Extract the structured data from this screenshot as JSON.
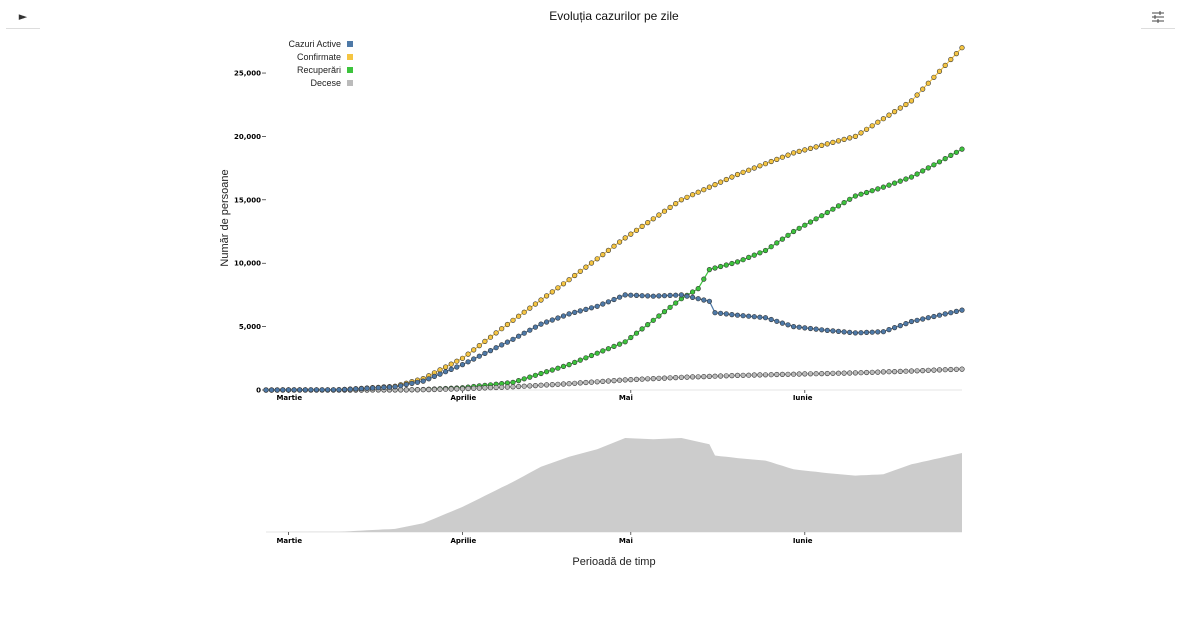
{
  "controls": {
    "play_icon": "►"
  },
  "chart_data": {
    "type": "scatter",
    "title": "Evoluția cazurilor pe zile",
    "xlabel": "Perioadă de timp",
    "ylabel": "Număr de persoane",
    "ylim": [
      0,
      28000
    ],
    "yticks": [
      0,
      5000,
      10000,
      15000,
      20000,
      25000
    ],
    "ytick_labels": [
      "0",
      "5,000",
      "10,000",
      "15,000",
      "20,000",
      "25,000"
    ],
    "x_range": [
      "2020-02-26",
      "2020-06-29"
    ],
    "xticks": [
      {
        "date": "2020-03-01",
        "label": "Martie"
      },
      {
        "date": "2020-04-01",
        "label": "Aprilie"
      },
      {
        "date": "2020-05-01",
        "label": "Mai"
      },
      {
        "date": "2020-06-01",
        "label": "Iunie"
      }
    ],
    "legend_position": "top-left",
    "series": [
      {
        "name": "Cazuri Active",
        "color": "#4e79a7",
        "points": [
          [
            "2020-02-26",
            0
          ],
          [
            "2020-03-10",
            20
          ],
          [
            "2020-03-20",
            250
          ],
          [
            "2020-03-25",
            700
          ],
          [
            "2020-04-01",
            2000
          ],
          [
            "2020-04-10",
            4000
          ],
          [
            "2020-04-15",
            5200
          ],
          [
            "2020-04-20",
            6000
          ],
          [
            "2020-04-25",
            6600
          ],
          [
            "2020-04-30",
            7500
          ],
          [
            "2020-05-05",
            7400
          ],
          [
            "2020-05-10",
            7500
          ],
          [
            "2020-05-15",
            7000
          ],
          [
            "2020-05-16",
            6100
          ],
          [
            "2020-05-20",
            5900
          ],
          [
            "2020-05-25",
            5700
          ],
          [
            "2020-05-30",
            5000
          ],
          [
            "2020-06-05",
            4700
          ],
          [
            "2020-06-10",
            4500
          ],
          [
            "2020-06-15",
            4600
          ],
          [
            "2020-06-20",
            5400
          ],
          [
            "2020-06-25",
            5900
          ],
          [
            "2020-06-29",
            6300
          ]
        ]
      },
      {
        "name": "Confirmate",
        "color": "#f5c542",
        "points": [
          [
            "2020-02-26",
            0
          ],
          [
            "2020-03-10",
            20
          ],
          [
            "2020-03-20",
            300
          ],
          [
            "2020-03-25",
            900
          ],
          [
            "2020-04-01",
            2500
          ],
          [
            "2020-04-10",
            5500
          ],
          [
            "2020-04-20",
            8700
          ],
          [
            "2020-04-30",
            12000
          ],
          [
            "2020-05-10",
            15000
          ],
          [
            "2020-05-20",
            17000
          ],
          [
            "2020-05-30",
            18700
          ],
          [
            "2020-06-10",
            20000
          ],
          [
            "2020-06-20",
            22800
          ],
          [
            "2020-06-29",
            27000
          ]
        ]
      },
      {
        "name": "Recuperări",
        "color": "#3cc33c",
        "points": [
          [
            "2020-02-26",
            0
          ],
          [
            "2020-03-20",
            5
          ],
          [
            "2020-03-25",
            40
          ],
          [
            "2020-04-01",
            180
          ],
          [
            "2020-04-10",
            600
          ],
          [
            "2020-04-20",
            2000
          ],
          [
            "2020-04-30",
            3800
          ],
          [
            "2020-05-05",
            5500
          ],
          [
            "2020-05-10",
            7200
          ],
          [
            "2020-05-13",
            8000
          ],
          [
            "2020-05-15",
            9500
          ],
          [
            "2020-05-20",
            10100
          ],
          [
            "2020-05-25",
            11000
          ],
          [
            "2020-05-30",
            12500
          ],
          [
            "2020-06-05",
            14000
          ],
          [
            "2020-06-10",
            15300
          ],
          [
            "2020-06-15",
            16000
          ],
          [
            "2020-06-20",
            16800
          ],
          [
            "2020-06-25",
            18000
          ],
          [
            "2020-06-29",
            19000
          ]
        ]
      },
      {
        "name": "Decese",
        "color": "#bbbbbb",
        "points": [
          [
            "2020-02-26",
            0
          ],
          [
            "2020-03-20",
            5
          ],
          [
            "2020-03-25",
            20
          ],
          [
            "2020-04-01",
            100
          ],
          [
            "2020-04-10",
            250
          ],
          [
            "2020-04-20",
            500
          ],
          [
            "2020-04-30",
            800
          ],
          [
            "2020-05-10",
            1000
          ],
          [
            "2020-05-20",
            1150
          ],
          [
            "2020-05-30",
            1250
          ],
          [
            "2020-06-10",
            1350
          ],
          [
            "2020-06-20",
            1500
          ],
          [
            "2020-06-29",
            1650
          ]
        ]
      }
    ]
  }
}
